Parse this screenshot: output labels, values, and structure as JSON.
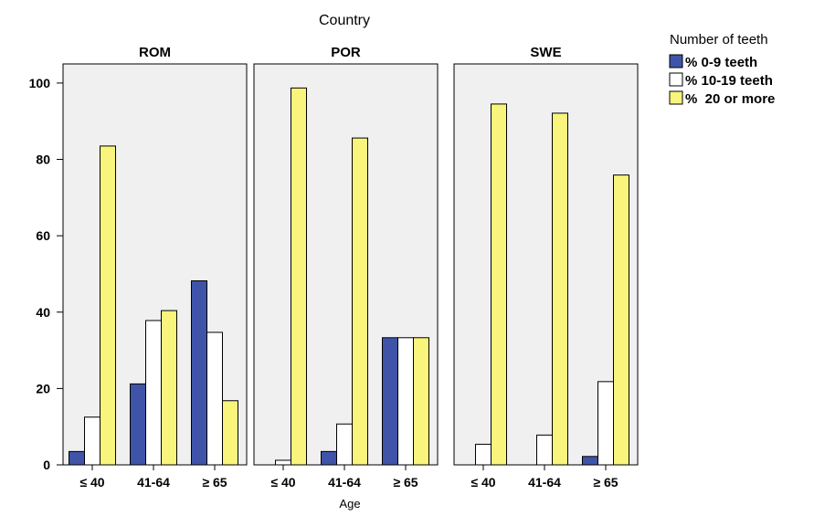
{
  "chart_data": {
    "type": "bar",
    "title": "Country",
    "xlabel": "Age",
    "ylabel": "",
    "ylim": [
      0,
      105
    ],
    "yticks": [
      0,
      20,
      40,
      60,
      80,
      100
    ],
    "categories": [
      "≤ 40",
      "41-64",
      "≥ 65"
    ],
    "legend": {
      "title": "Number of teeth",
      "position": "top-right"
    },
    "series": [
      {
        "name": "% 0-9 teeth",
        "color": "#3f54a8"
      },
      {
        "name": "% 10-19 teeth",
        "color": "#ffffff"
      },
      {
        "name": "%  20 or more",
        "color": "#f8f47c"
      }
    ],
    "panels": [
      {
        "name": "ROM",
        "values": [
          [
            3.5,
            12.5,
            83.5
          ],
          [
            21.2,
            37.8,
            40.4
          ],
          [
            48.2,
            34.7,
            16.8
          ]
        ]
      },
      {
        "name": "POR",
        "values": [
          [
            0,
            1.2,
            98.7
          ],
          [
            3.5,
            10.7,
            85.6
          ],
          [
            33.3,
            33.3,
            33.3
          ]
        ]
      },
      {
        "name": "SWE",
        "values": [
          [
            0,
            5.4,
            94.5
          ],
          [
            0,
            7.8,
            92.1
          ],
          [
            2.2,
            21.8,
            75.9
          ]
        ]
      }
    ],
    "grid": false
  }
}
